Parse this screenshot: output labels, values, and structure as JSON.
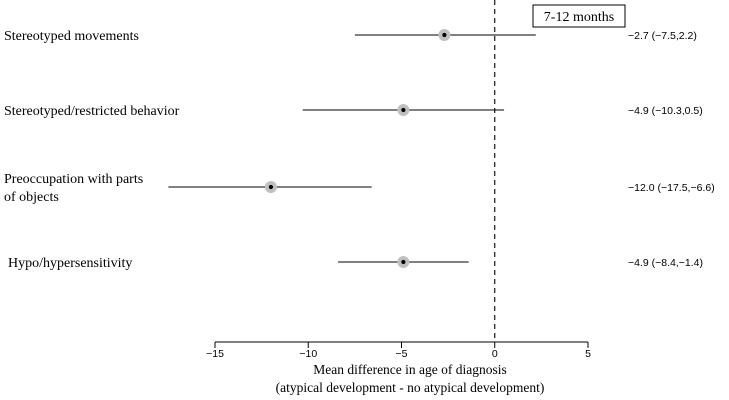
{
  "chart_data": {
    "type": "forest",
    "panel_label": "7-12 months",
    "xlabel_line1": "Mean difference in age of diagnosis",
    "xlabel_line2": "(atypical development - no atypical development)",
    "xlim": [
      -15,
      5
    ],
    "ticks": [
      -15,
      -10,
      -5,
      0,
      5
    ],
    "tick_labels": [
      "−15",
      "−10",
      "−5",
      "0",
      "5"
    ],
    "reference_line": 0,
    "rows": [
      {
        "label_lines": [
          "Stereotyped movements"
        ],
        "estimate": -2.7,
        "lower": -7.5,
        "upper": 2.2,
        "ci_text": "−2.7 (−7.5,2.2)"
      },
      {
        "label_lines": [
          "Stereotyped/restricted behavior"
        ],
        "estimate": -4.9,
        "lower": -10.3,
        "upper": 0.5,
        "ci_text": "−4.9 (−10.3,0.5)"
      },
      {
        "label_lines": [
          "Preoccupation with parts",
          "of objects"
        ],
        "estimate": -12.0,
        "lower": -17.5,
        "upper": -6.6,
        "ci_text": "−12.0 (−17.5,−6.6)"
      },
      {
        "label_lines": [
          "Hypo/hypersensitivity"
        ],
        "estimate": -4.9,
        "lower": -8.4,
        "upper": -1.4,
        "ci_text": "−4.9 (−8.4,−1.4)"
      }
    ],
    "colors": {
      "marker_fill": "#c0c0c0",
      "marker_dot": "#000000",
      "line": "#000000"
    }
  }
}
